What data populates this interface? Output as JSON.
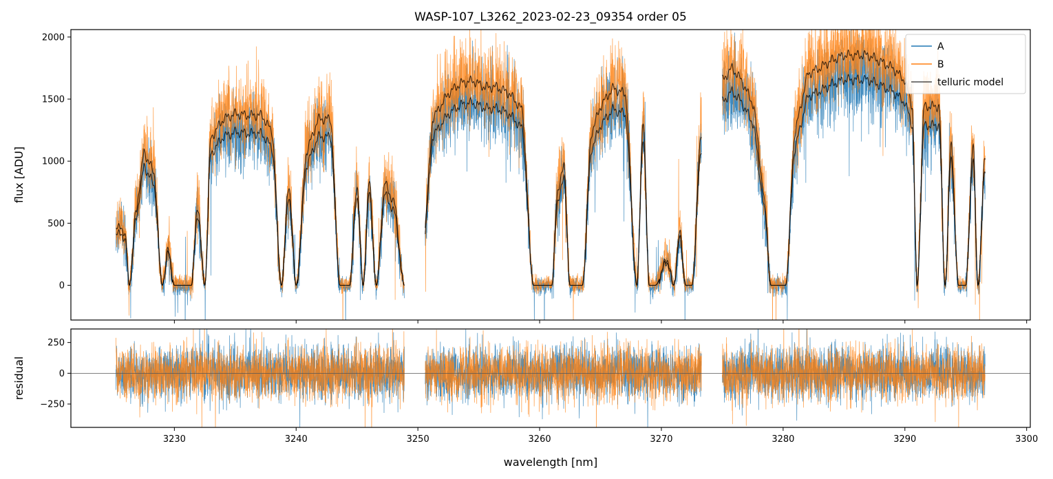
{
  "title": "WASP-107_L3262_2023-02-23_09354  order 05",
  "colors": {
    "A": "#1f77b4",
    "B": "#ff7f0e",
    "model": "#000000"
  },
  "chart_data": [
    {
      "type": "line",
      "panel": "main",
      "title": "WASP-107_L3262_2023-02-23_09354  order 05",
      "xlabel": "",
      "ylabel": "flux [ADU]",
      "xlim": [
        3221.5,
        3300.3
      ],
      "ylim": [
        -280,
        2060
      ],
      "xticks": [
        3230,
        3240,
        3250,
        3260,
        3270,
        3280,
        3290,
        3300
      ],
      "yticks": [
        0,
        500,
        1000,
        1500,
        2000
      ],
      "grid": false,
      "legend": {
        "position": "top-right",
        "entries": [
          "A",
          "B",
          "telluric model"
        ]
      },
      "segments": [
        [
          3225.2,
          3248.9
        ],
        [
          3250.6,
          3273.3
        ],
        [
          3275.0,
          3296.6
        ]
      ],
      "envelope_key": {
        "x": [
          3225.2,
          3225.6,
          3226.0,
          3226.3,
          3226.9,
          3227.5,
          3228.3,
          3229.0,
          3229.5,
          3230.0,
          3230.6,
          3231.4,
          3231.9,
          3232.5,
          3233.0,
          3234.0,
          3235.0,
          3236.0,
          3236.6,
          3237.2,
          3238.0,
          3238.8,
          3239.4,
          3240.0,
          3240.9,
          3241.8,
          3242.8,
          3243.6,
          3244.4,
          3245.0,
          3245.5,
          3246.0,
          3246.6,
          3247.3,
          3248.0,
          3248.9,
          3250.6,
          3251.2,
          3252.5,
          3253.5,
          3254.5,
          3255.5,
          3256.5,
          3257.5,
          3258.5,
          3259.5,
          3260.5,
          3261.0,
          3261.5,
          3262.0,
          3262.5,
          3263.5,
          3264.3,
          3265.0,
          3266.0,
          3267.0,
          3268.0,
          3268.5,
          3269.0,
          3269.5,
          3270.5,
          3271.0,
          3271.5,
          3272.0,
          3272.5,
          3273.3,
          3275.0,
          3275.8,
          3276.6,
          3277.6,
          3278.5,
          3279.0,
          3279.6,
          3280.2,
          3281.0,
          3282.0,
          3283.0,
          3284.0,
          3285.0,
          3286.0,
          3287.0,
          3288.0,
          3289.0,
          3290.0,
          3290.6,
          3291.0,
          3291.6,
          3292.2,
          3292.8,
          3293.3,
          3293.8,
          3294.4,
          3295.0,
          3295.6,
          3296.0,
          3296.6
        ],
        "model": [
          420,
          480,
          350,
          0,
          600,
          1050,
          880,
          0,
          270,
          0,
          0,
          0,
          620,
          0,
          1150,
          1300,
          1340,
          1330,
          1330,
          1330,
          1200,
          0,
          780,
          0,
          1050,
          1300,
          1300,
          0,
          0,
          780,
          0,
          800,
          0,
          800,
          650,
          0,
          450,
          1300,
          1500,
          1580,
          1600,
          1550,
          1550,
          1500,
          1380,
          0,
          0,
          0,
          750,
          930,
          0,
          0,
          1200,
          1400,
          1540,
          1500,
          0,
          1300,
          0,
          0,
          200,
          0,
          400,
          0,
          0,
          1200,
          1600,
          1700,
          1600,
          1400,
          600,
          0,
          0,
          0,
          1200,
          1650,
          1700,
          1760,
          1800,
          1800,
          1800,
          1750,
          1700,
          1600,
          1400,
          0,
          1400,
          1400,
          1400,
          0,
          1100,
          0,
          0,
          1100,
          0,
          1000
        ]
      },
      "series": [
        {
          "name": "A",
          "color": "#1f77b4",
          "type": "line"
        },
        {
          "name": "B",
          "color": "#ff7f0e",
          "type": "line"
        },
        {
          "name": "telluric model",
          "color": "#000000",
          "type": "line"
        }
      ]
    },
    {
      "type": "line",
      "panel": "residual",
      "xlabel": "wavelength [nm]",
      "ylabel": "residual",
      "xlim": [
        3221.5,
        3300.3
      ],
      "ylim": [
        -440,
        360
      ],
      "xticks": [
        3230,
        3240,
        3250,
        3260,
        3270,
        3280,
        3290,
        3300
      ],
      "yticks": [
        -250,
        0,
        250
      ],
      "noise_sigma": 110,
      "grid": false,
      "series": [
        {
          "name": "A",
          "color": "#1f77b4",
          "type": "line"
        },
        {
          "name": "B",
          "color": "#ff7f0e",
          "type": "line"
        }
      ]
    }
  ]
}
